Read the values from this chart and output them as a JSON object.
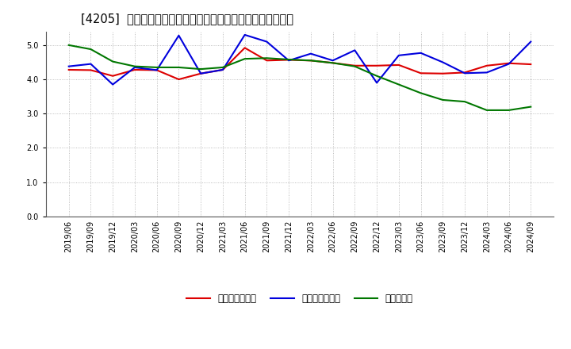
{
  "title": "[4205]  売上債権回転率、買入債務回転率、在庫回転率の推移",
  "x_labels": [
    "2019/06",
    "2019/09",
    "2019/12",
    "2020/03",
    "2020/06",
    "2020/09",
    "2020/12",
    "2021/03",
    "2021/06",
    "2021/09",
    "2021/12",
    "2022/03",
    "2022/06",
    "2022/09",
    "2022/12",
    "2023/03",
    "2023/06",
    "2023/09",
    "2023/12",
    "2024/03",
    "2024/06",
    "2024/09"
  ],
  "red_series": [
    4.28,
    4.27,
    4.1,
    4.28,
    4.27,
    4.0,
    4.17,
    4.28,
    4.92,
    4.55,
    4.57,
    4.55,
    4.48,
    4.4,
    4.4,
    4.42,
    4.18,
    4.17,
    4.2,
    4.4,
    4.47,
    4.44
  ],
  "blue_series": [
    4.38,
    4.45,
    3.85,
    4.35,
    4.27,
    5.28,
    4.17,
    4.28,
    5.3,
    5.1,
    4.55,
    4.75,
    4.55,
    4.85,
    3.9,
    4.7,
    4.77,
    4.5,
    4.18,
    4.2,
    4.45,
    5.1
  ],
  "green_series": [
    5.0,
    4.88,
    4.52,
    4.38,
    4.35,
    4.35,
    4.3,
    4.35,
    4.6,
    4.62,
    4.58,
    4.55,
    4.48,
    4.38,
    4.1,
    3.85,
    3.6,
    3.4,
    3.35,
    3.1,
    3.1,
    3.2
  ],
  "ylim": [
    0.0,
    5.4
  ],
  "yticks": [
    0.0,
    1.0,
    2.0,
    3.0,
    4.0,
    5.0
  ],
  "red_color": "#dd0000",
  "blue_color": "#0000dd",
  "green_color": "#007700",
  "legend_labels": [
    "売上債権回転率",
    "買入債務回転率",
    "在庫回転率"
  ],
  "bg_color": "#ffffff",
  "plot_bg_color": "#ffffff",
  "grid_color": "#999999",
  "title_fontsize": 10.5,
  "legend_fontsize": 8.5,
  "tick_fontsize": 7,
  "linewidth": 1.5
}
